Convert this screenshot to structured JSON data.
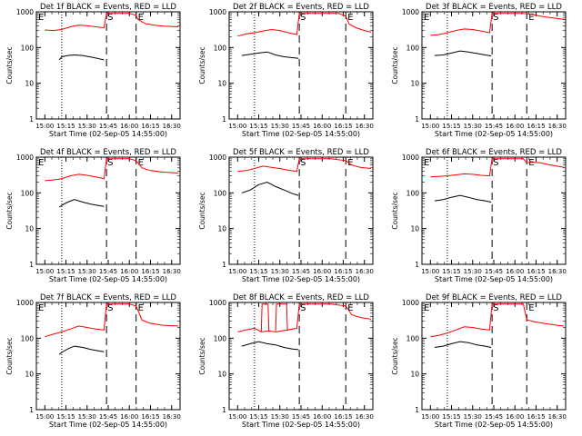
{
  "figure": {
    "ylabel": "Counts/sec",
    "xlabel": "Start Time (02-Sep-05 14:55:00)",
    "x_ticks": [
      "15:00",
      "15:15",
      "15:30",
      "15:45",
      "16:00",
      "16:15",
      "16:30"
    ],
    "y_ticks": [
      "1",
      "10",
      "100",
      "1000"
    ],
    "colors": {
      "events": "#000000",
      "lld": "#ff0000",
      "axes": "#000000"
    },
    "markers": {
      "start": "S",
      "end": "E"
    }
  },
  "chart_data": [
    {
      "type": "line",
      "title": "Det 1f BLACK = Events, RED = LLD",
      "xlim": [
        14.9,
        16.6
      ],
      "ylim": [
        1,
        1000
      ],
      "yscale": "log",
      "dotted": 15.2,
      "dashed_S": 15.73,
      "dashed2": 16.08,
      "E_left": true,
      "E_right": true,
      "lld_extra": [],
      "series": [
        {
          "name": "Events",
          "x": [
            15.17,
            15.2,
            15.27,
            15.35,
            15.45,
            15.55,
            15.62,
            15.7
          ],
          "y": [
            45,
            55,
            60,
            62,
            60,
            54,
            50,
            45
          ]
        },
        {
          "name": "LLD",
          "x": [
            15.0,
            15.1,
            15.2,
            15.3,
            15.4,
            15.5,
            15.6,
            15.7,
            15.73,
            15.78,
            15.85,
            15.95,
            16.0,
            16.08,
            16.1,
            16.15,
            16.2,
            16.3,
            16.4,
            16.5,
            16.58
          ],
          "y": [
            310,
            300,
            320,
            380,
            420,
            410,
            380,
            360,
            900,
            900,
            900,
            900,
            900,
            800,
            620,
            520,
            460,
            420,
            400,
            390,
            380
          ]
        }
      ]
    },
    {
      "type": "line",
      "title": "Det 2f BLACK = Events, RED = LLD",
      "xlim": [
        14.9,
        16.6
      ],
      "ylim": [
        1,
        1000
      ],
      "yscale": "log",
      "dotted": 15.2,
      "dashed_S": 15.73,
      "dashed2": 16.28,
      "E_left": false,
      "E_right": true,
      "lld_extra": [],
      "series": [
        {
          "name": "Events",
          "x": [
            15.05,
            15.15,
            15.25,
            15.35,
            15.45,
            15.55,
            15.65,
            15.72
          ],
          "y": [
            60,
            65,
            70,
            75,
            62,
            55,
            52,
            50
          ]
        },
        {
          "name": "LLD",
          "x": [
            15.0,
            15.1,
            15.2,
            15.3,
            15.4,
            15.5,
            15.6,
            15.7,
            15.73,
            15.85,
            16.0,
            16.2,
            16.28,
            16.32,
            16.4,
            16.5,
            16.58
          ],
          "y": [
            210,
            240,
            260,
            290,
            320,
            300,
            260,
            230,
            900,
            900,
            900,
            900,
            750,
            450,
            360,
            300,
            270
          ]
        }
      ]
    },
    {
      "type": "line",
      "title": "Det 3f BLACK = Events, RED = LLD",
      "xlim": [
        14.9,
        16.6
      ],
      "ylim": [
        1,
        1000
      ],
      "yscale": "log",
      "dotted": 15.2,
      "dashed_S": 15.73,
      "dashed2": 16.14,
      "E_left": true,
      "E_right": true,
      "lld_extra": [],
      "series": [
        {
          "name": "Events",
          "x": [
            15.05,
            15.15,
            15.25,
            15.35,
            15.45,
            15.55,
            15.65,
            15.72
          ],
          "y": [
            60,
            62,
            70,
            80,
            75,
            68,
            62,
            58
          ]
        },
        {
          "name": "LLD",
          "x": [
            15.0,
            15.1,
            15.2,
            15.3,
            15.4,
            15.5,
            15.6,
            15.7,
            15.73,
            15.9,
            16.1,
            16.2,
            16.3,
            16.4,
            16.5,
            16.58
          ],
          "y": [
            220,
            230,
            260,
            300,
            330,
            320,
            290,
            260,
            900,
            900,
            900,
            850,
            760,
            700,
            650,
            620
          ]
        }
      ]
    },
    {
      "type": "line",
      "title": "Det 4f BLACK = Events, RED = LLD",
      "xlim": [
        14.9,
        16.6
      ],
      "ylim": [
        1,
        1000
      ],
      "yscale": "log",
      "dotted": 15.2,
      "dashed_S": 15.73,
      "dashed2": 16.08,
      "E_left": true,
      "E_right": true,
      "lld_extra": [],
      "series": [
        {
          "name": "Events",
          "x": [
            15.17,
            15.2,
            15.27,
            15.35,
            15.45,
            15.55,
            15.62,
            15.7
          ],
          "y": [
            40,
            45,
            55,
            65,
            55,
            48,
            45,
            42
          ]
        },
        {
          "name": "LLD",
          "x": [
            15.0,
            15.1,
            15.2,
            15.3,
            15.4,
            15.5,
            15.6,
            15.7,
            15.73,
            15.85,
            16.0,
            16.08,
            16.15,
            16.25,
            16.4,
            16.58
          ],
          "y": [
            220,
            230,
            250,
            300,
            330,
            310,
            280,
            250,
            900,
            900,
            900,
            800,
            500,
            420,
            380,
            360
          ]
        }
      ]
    },
    {
      "type": "line",
      "title": "Det 5f BLACK = Events, RED = LLD",
      "xlim": [
        14.9,
        16.6
      ],
      "ylim": [
        1,
        1000
      ],
      "yscale": "log",
      "dotted": 15.2,
      "dashed_S": 15.73,
      "dashed2": 16.28,
      "E_left": false,
      "E_right": true,
      "lld_extra": [],
      "series": [
        {
          "name": "Events",
          "x": [
            15.05,
            15.15,
            15.25,
            15.35,
            15.45,
            15.55,
            15.65,
            15.72
          ],
          "y": [
            100,
            120,
            170,
            200,
            150,
            120,
            95,
            85
          ]
        },
        {
          "name": "LLD",
          "x": [
            15.0,
            15.1,
            15.2,
            15.3,
            15.4,
            15.5,
            15.6,
            15.7,
            15.73,
            15.9,
            16.1,
            16.28,
            16.35,
            16.45,
            16.58
          ],
          "y": [
            400,
            420,
            480,
            560,
            520,
            480,
            430,
            400,
            900,
            900,
            900,
            800,
            600,
            520,
            480
          ]
        }
      ]
    },
    {
      "type": "line",
      "title": "Det 6f BLACK = Events, RED = LLD",
      "xlim": [
        14.9,
        16.6
      ],
      "ylim": [
        1,
        1000
      ],
      "yscale": "log",
      "dotted": 15.2,
      "dashed_S": 15.73,
      "dashed2": 16.14,
      "E_left": true,
      "E_right": true,
      "lld_extra": [],
      "series": [
        {
          "name": "Events",
          "x": [
            15.05,
            15.15,
            15.25,
            15.35,
            15.45,
            15.55,
            15.65,
            15.72
          ],
          "y": [
            60,
            65,
            75,
            85,
            75,
            65,
            60,
            55
          ]
        },
        {
          "name": "LLD",
          "x": [
            15.0,
            15.1,
            15.2,
            15.3,
            15.4,
            15.5,
            15.6,
            15.7,
            15.73,
            15.9,
            16.05,
            16.1,
            16.14,
            16.2,
            16.3,
            16.4,
            16.5,
            16.58
          ],
          "y": [
            280,
            290,
            300,
            320,
            340,
            330,
            310,
            300,
            900,
            900,
            900,
            900,
            700,
            720,
            700,
            620,
            560,
            520
          ]
        }
      ]
    },
    {
      "type": "line",
      "title": "Det 7f BLACK = Events, RED = LLD",
      "xlim": [
        14.9,
        16.6
      ],
      "ylim": [
        1,
        1000
      ],
      "yscale": "log",
      "dotted": 15.2,
      "dashed_S": 15.73,
      "dashed2": 16.08,
      "E_left": true,
      "E_right": true,
      "lld_extra": [],
      "series": [
        {
          "name": "Events",
          "x": [
            15.17,
            15.2,
            15.27,
            15.35,
            15.45,
            15.55,
            15.62,
            15.7
          ],
          "y": [
            35,
            40,
            50,
            60,
            55,
            48,
            45,
            42
          ]
        },
        {
          "name": "LLD",
          "x": [
            15.0,
            15.1,
            15.2,
            15.3,
            15.4,
            15.5,
            15.6,
            15.7,
            15.73,
            15.85,
            16.0,
            16.08,
            16.15,
            16.25,
            16.4,
            16.58
          ],
          "y": [
            110,
            130,
            150,
            180,
            220,
            200,
            180,
            170,
            900,
            900,
            900,
            800,
            320,
            260,
            230,
            220
          ]
        }
      ]
    },
    {
      "type": "line",
      "title": "Det 8f BLACK = Events, RED = LLD",
      "xlim": [
        14.9,
        16.6
      ],
      "ylim": [
        1,
        1000
      ],
      "yscale": "log",
      "dotted": 15.2,
      "dashed_S": 15.73,
      "dashed2": 16.28,
      "E_left": false,
      "E_right": true,
      "lld_extra": [
        {
          "x": [
            15.28,
            15.29,
            15.36,
            15.37
          ],
          "y": [
            150,
            900,
            900,
            150
          ]
        },
        {
          "x": [
            15.45,
            15.46,
            15.58,
            15.59
          ],
          "y": [
            160,
            900,
            900,
            160
          ]
        }
      ],
      "series": [
        {
          "name": "Events",
          "x": [
            15.05,
            15.15,
            15.25,
            15.35,
            15.45,
            15.55,
            15.65,
            15.72
          ],
          "y": [
            60,
            70,
            80,
            70,
            65,
            55,
            50,
            48
          ]
        },
        {
          "name": "LLD",
          "x": [
            15.0,
            15.1,
            15.2,
            15.28,
            15.37,
            15.45,
            15.59,
            15.7,
            15.73,
            15.9,
            16.1,
            16.28,
            16.35,
            16.45,
            16.58
          ],
          "y": [
            150,
            170,
            190,
            150,
            160,
            150,
            170,
            190,
            900,
            900,
            900,
            800,
            450,
            380,
            340
          ]
        }
      ]
    },
    {
      "type": "line",
      "title": "Det 9f BLACK = Events, RED = LLD",
      "xlim": [
        14.9,
        16.6
      ],
      "ylim": [
        1,
        1000
      ],
      "yscale": "log",
      "dotted": 15.2,
      "dashed_S": 15.73,
      "dashed2": 16.14,
      "E_left": true,
      "E_right": true,
      "lld_extra": [],
      "series": [
        {
          "name": "Events",
          "x": [
            15.05,
            15.15,
            15.25,
            15.35,
            15.45,
            15.55,
            15.65,
            15.72
          ],
          "y": [
            55,
            60,
            70,
            80,
            75,
            65,
            60,
            55
          ]
        },
        {
          "name": "LLD",
          "x": [
            15.0,
            15.1,
            15.2,
            15.3,
            15.4,
            15.5,
            15.6,
            15.7,
            15.73,
            15.9,
            16.05,
            16.1,
            16.14,
            16.2,
            16.3,
            16.4,
            16.5,
            16.58
          ],
          "y": [
            110,
            120,
            140,
            170,
            210,
            200,
            180,
            170,
            900,
            900,
            900,
            900,
            330,
            300,
            270,
            250,
            230,
            220
          ]
        }
      ]
    }
  ]
}
